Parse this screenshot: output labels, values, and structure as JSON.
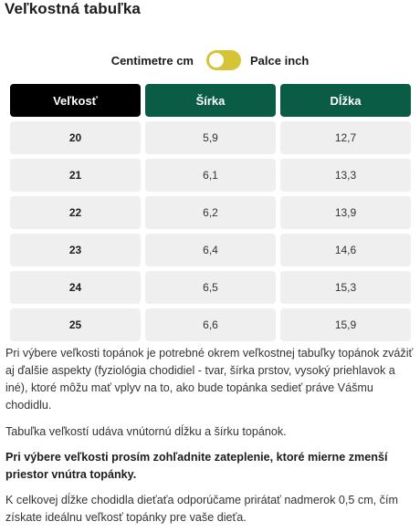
{
  "title": "Veľkostná tabuľka",
  "units": {
    "left_label": "Centimetre cm",
    "right_label": "Palce inch",
    "toggle_color": "#d4c436",
    "selected": "left"
  },
  "table": {
    "headers": [
      "Veľkosť",
      "Šírka",
      "Dĺžka"
    ],
    "header_colors": [
      "#000000",
      "#0a5c44",
      "#0a5c44"
    ],
    "rows": [
      [
        "20",
        "5,9",
        "12,7"
      ],
      [
        "21",
        "6,1",
        "13,3"
      ],
      [
        "22",
        "6,2",
        "13,9"
      ],
      [
        "23",
        "6,4",
        "14,6"
      ],
      [
        "24",
        "6,5",
        "15,3"
      ],
      [
        "25",
        "6,6",
        "15,9"
      ]
    ]
  },
  "notes": {
    "p1": "Pri výbere veľkosti topánok je potrebné okrem veľkostnej tabuľky topánok zvážiť aj ďalšie aspekty (fyziológia chodidiel - tvar, šírka prstov, vysoký priehlavok a iné), ktoré môžu mať vplyv na to, ako bude topánka sedieť práve Vášmu chodidlu.",
    "p2": "Tabuľka veľkostí udáva vnútornú dĺžku a šírku topánok.",
    "p3": "Pri výbere veľkosti prosím zohľadnite zateplenie, ktoré mierne zmenší priestor vnútra topánky.",
    "p4": "K celkovej dĺžke chodidla dieťaťa odporúčame prirátať nadmerok 0,5 cm, čím získate ideálnu veľkosť topánky pre vaše dieťa."
  }
}
